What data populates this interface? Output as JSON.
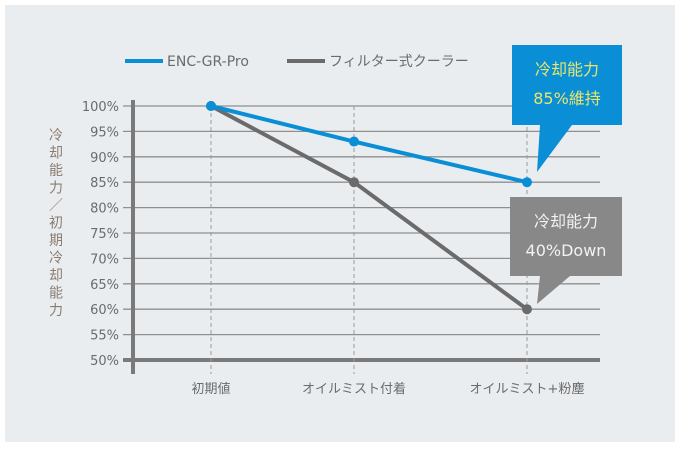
{
  "chart_data": {
    "type": "line",
    "categories": [
      "初期値",
      "オイルミスト付着",
      "オイルミスト+粉塵"
    ],
    "series": [
      {
        "name": "ENC-GR-Pro",
        "values": [
          100,
          93,
          85
        ],
        "color": "#0a8fd6"
      },
      {
        "name": "フィルター式クーラー",
        "values": [
          100,
          85,
          60
        ],
        "color": "#6b6b6b"
      }
    ],
    "ylabel": "冷却能力／初期冷却能力",
    "ylim": [
      50,
      100
    ],
    "yticks": [
      100,
      95,
      90,
      85,
      80,
      75,
      70,
      65,
      60,
      55,
      50
    ],
    "ytick_labels": [
      "100%",
      "95%",
      "90%",
      "85%",
      "80%",
      "75%",
      "70%",
      "65%",
      "60%",
      "55%",
      "50%"
    ],
    "grid": true,
    "legend_position": "top",
    "annotations": [
      {
        "series": 0,
        "point": 2,
        "lines": [
          "冷却能力",
          "85%維持"
        ],
        "bg": "#0a8fd6",
        "color": "#e8e66a"
      },
      {
        "series": 1,
        "point": 2,
        "lines": [
          "冷却能力",
          "40%Down"
        ],
        "bg": "#888888",
        "color": "#f2f2f2"
      }
    ]
  }
}
